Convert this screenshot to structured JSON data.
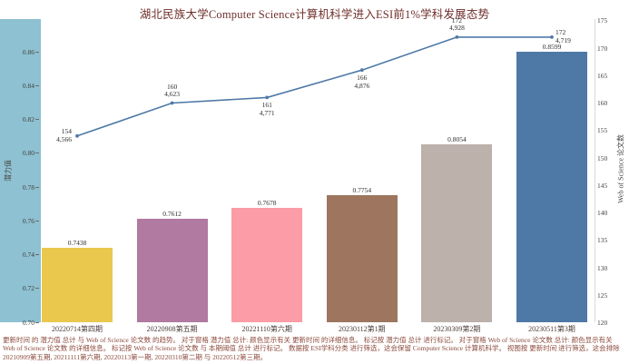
{
  "title": "湖北民族大学Computer Science计算机科学进入ESI前1%学科发展态势",
  "colors": {
    "axis_band": "#8ec1d1",
    "line": "#4e79a7",
    "right_axis_line": "#d9d9d9"
  },
  "chart_data": {
    "type": "bar",
    "subtype": "dual-axis bar + line",
    "title": "湖北民族大学Computer Science计算机科学进入ESI前1%学科发展态势",
    "categories": [
      "20220714第四期",
      "20220908第五期",
      "20221110第六期",
      "20230112第1期",
      "20230309第2期",
      "20230511第3期"
    ],
    "bar_series": {
      "name": "潜力值",
      "axis": "left",
      "values": [
        0.7438,
        0.7612,
        0.7678,
        0.7754,
        0.8054,
        0.8599
      ],
      "labels": [
        "0.7438",
        "0.7612",
        "0.7678",
        "0.7754",
        "0.8054",
        "0.8599"
      ],
      "colors": [
        "#e9c84d",
        "#b07aa1",
        "#fb9ca6",
        "#9e765f",
        "#bcb1ab",
        "#4e79a7"
      ]
    },
    "line_series": {
      "name": "Web of Science 论文数",
      "axis": "right",
      "values": [
        154,
        160,
        161,
        166,
        172,
        172
      ],
      "secondary_labels": [
        "4,566",
        "4,623",
        "4,771",
        "4,876",
        "4,928",
        "4,719"
      ],
      "color": "#4e79a7",
      "label_positions": [
        "left",
        "above",
        "below",
        "below",
        "above",
        "right"
      ]
    },
    "left_axis": {
      "label": "潜力值",
      "min": 0.7,
      "max": 0.86,
      "ticks": [
        "0.86",
        "0.84",
        "0.82",
        "0.80",
        "0.78",
        "0.76",
        "0.74",
        "0.72",
        "0.70"
      ]
    },
    "right_axis": {
      "label": "Web of Science 论文数",
      "min": 120,
      "max": 175,
      "ticks": [
        "175",
        "170",
        "165",
        "160",
        "155",
        "150",
        "145",
        "140",
        "135",
        "130",
        "125",
        "120"
      ]
    },
    "grid": false,
    "legend": "none"
  },
  "footnote": "更新时间 的 潜力值 总计 与 Web of Science 论文数 的趋势。  对于窗格 潜力值 总计: 颜色显示有关 更新时间 的详细信息。  标记按 潜力值 总计 进行标记。  对于窗格 Web of Science 论文数 总计: 颜色显示有关 Web of Science 论文数 的详细信息。  标记按 Web of Science 论文数 与 本期阈值 总计 进行标记。  数据按 ESI学科分类 进行筛选，这会保留 Computer Science 计算机科学。  视图按 更新时间 进行筛选，这会排除 20210909第五期, 20211111第六期, 20220113第一期, 20220310第二期 与 20220512第三期。"
}
